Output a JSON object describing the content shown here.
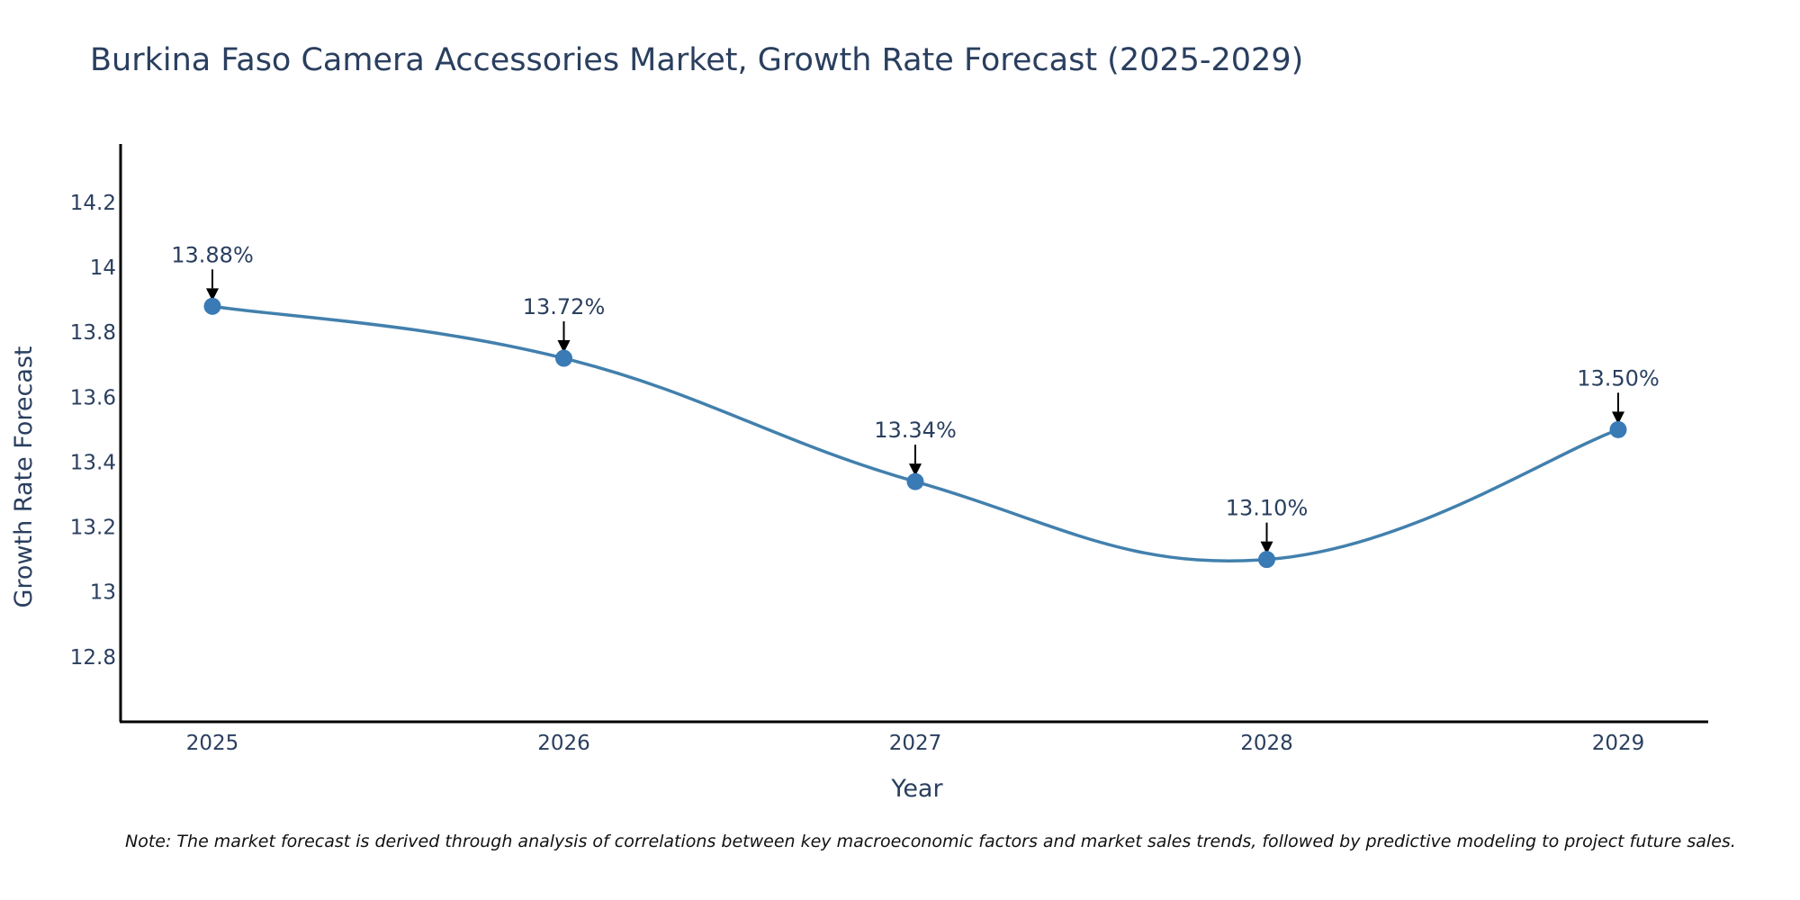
{
  "chart_data": {
    "type": "line",
    "title": "Burkina Faso Camera Accessories Market, Growth Rate Forecast (2025-2029)",
    "xlabel": "Year",
    "ylabel": "Growth Rate Forecast",
    "categories": [
      "2025",
      "2026",
      "2027",
      "2028",
      "2029"
    ],
    "values": [
      13.88,
      13.72,
      13.34,
      13.1,
      13.5
    ],
    "data_labels": [
      "13.88%",
      "13.72%",
      "13.34%",
      "13.10%",
      "13.50%"
    ],
    "ylim": [
      12.6,
      14.38
    ],
    "yticks": [
      12.8,
      13,
      13.2,
      13.4,
      13.6,
      13.8,
      14,
      14.2
    ],
    "ytick_labels": [
      "12.8",
      "13",
      "13.2",
      "13.4",
      "13.6",
      "13.8",
      "14",
      "14.2"
    ],
    "line_color": "#4280ad",
    "marker_color": "#3a7ab5",
    "grid": false,
    "note": "Note: The market forecast is derived through analysis of correlations between key macroeconomic factors and market sales trends, followed by predictive modeling to project future sales."
  }
}
